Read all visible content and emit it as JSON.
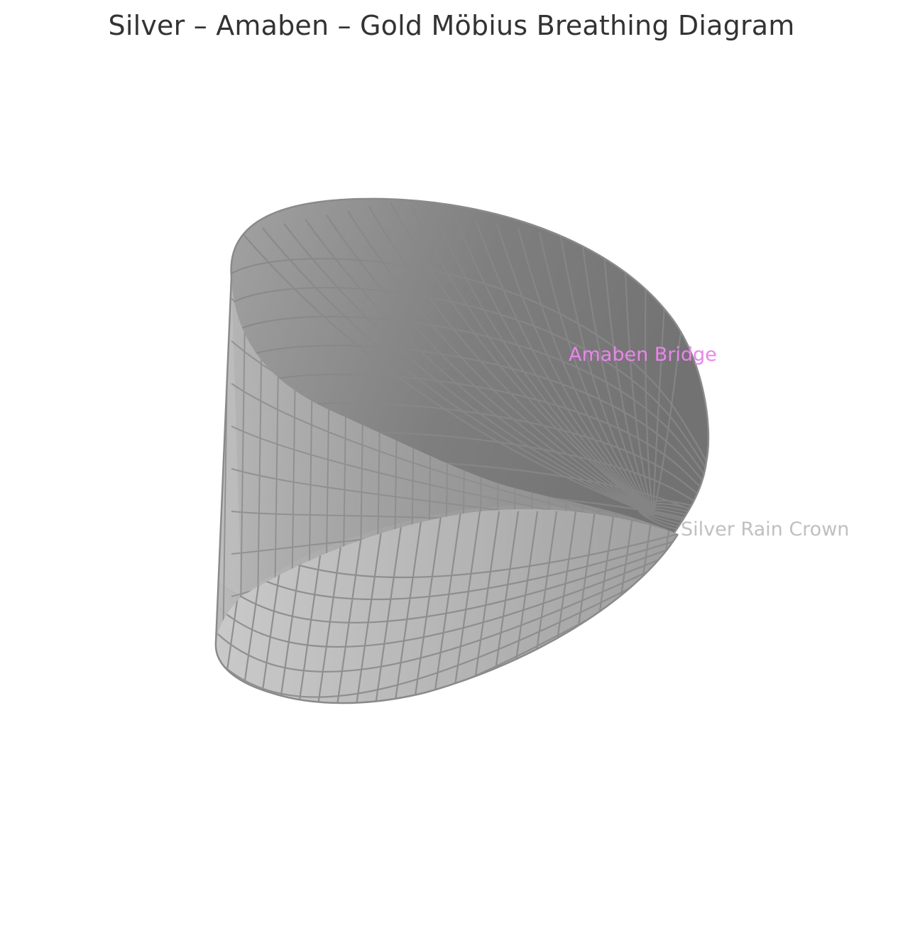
{
  "title": "Silver – Amaben – Gold Möbius Breathing Diagram",
  "labels": {
    "amaben_bridge": "Amaben Bridge",
    "silver_rain_crown": "Silver Rain Crown"
  },
  "colors": {
    "amaben_bridge": "#ee82ee",
    "silver_rain_crown": "#c0c0c0",
    "surface_light": "#c8c8c8",
    "surface_dark": "#6e6e6e",
    "mesh": "#888888",
    "title": "#333333"
  }
}
